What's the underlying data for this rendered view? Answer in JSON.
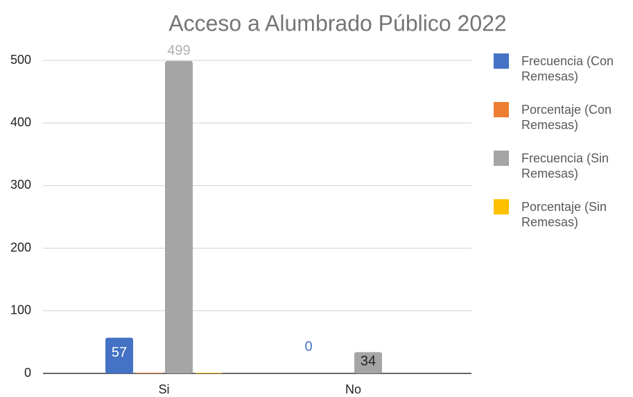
{
  "chart_data": {
    "type": "bar",
    "title": "Acceso a Alumbrado Público 2022",
    "categories": [
      "Si",
      "No"
    ],
    "series": [
      {
        "name": "Frecuencia (Con Remesas)",
        "color": "#4472c4",
        "values": [
          57,
          0
        ],
        "data_labels": true
      },
      {
        "name": "Porcentaje (Con Remesas)",
        "color": "#ed7d31",
        "values": [
          1,
          0
        ],
        "data_labels": false
      },
      {
        "name": "Frecuencia (Sin Remesas)",
        "color": "#a5a5a5",
        "values": [
          499,
          34
        ],
        "data_labels": true
      },
      {
        "name": "Porcentaje (Sin Remesas)",
        "color": "#ffc000",
        "values": [
          1,
          0
        ],
        "data_labels": false
      }
    ],
    "ylim": [
      0,
      500
    ],
    "yticks": [
      0,
      100,
      200,
      300,
      400,
      500
    ],
    "grid": true,
    "legend": "right"
  }
}
